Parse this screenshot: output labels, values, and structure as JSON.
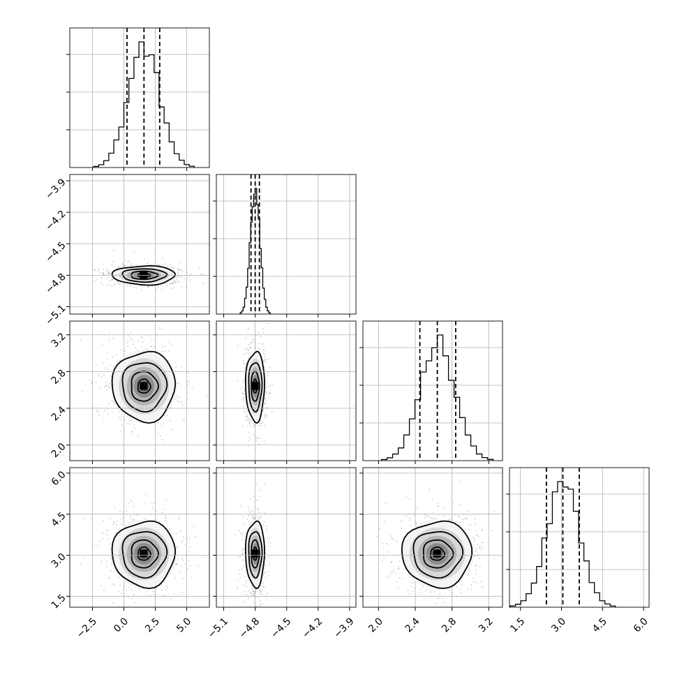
{
  "chart_data": {
    "type": "corner",
    "grid": true,
    "params": [
      {
        "id": "p0",
        "range": [
          -4.3,
          6.8
        ],
        "ticks": [
          -2.5,
          0.0,
          2.5,
          5.0
        ],
        "tick_labels": [
          "−2.5",
          "0.0",
          "2.5",
          "5.0"
        ],
        "mean": 1.6,
        "std": 1.25,
        "quantiles": [
          0.25,
          1.6,
          2.85
        ]
      },
      {
        "id": "p1",
        "range": [
          -5.17,
          -3.84
        ],
        "ticks": [
          -5.1,
          -4.8,
          -4.5,
          -4.2,
          -3.9
        ],
        "tick_labels": [
          "−5.1",
          "−4.8",
          "−4.5",
          "−4.2",
          "−3.9"
        ],
        "mean": -4.8,
        "std": 0.045,
        "quantiles": [
          -4.84,
          -4.8,
          -4.76
        ]
      },
      {
        "id": "p2",
        "range": [
          1.83,
          3.35
        ],
        "ticks": [
          2.0,
          2.4,
          2.8,
          3.2
        ],
        "tick_labels": [
          "2.0",
          "2.4",
          "2.8",
          "3.2"
        ],
        "mean": 2.64,
        "std": 0.19,
        "quantiles": [
          2.45,
          2.64,
          2.84
        ]
      },
      {
        "id": "p3",
        "range": [
          1.1,
          6.2
        ],
        "ticks": [
          1.5,
          3.0,
          4.5,
          6.0
        ],
        "tick_labels": [
          "1.5",
          "3.0",
          "4.5",
          "6.0"
        ],
        "mean": 3.05,
        "std": 0.6,
        "quantiles": [
          2.45,
          3.05,
          3.65
        ]
      }
    ]
  }
}
